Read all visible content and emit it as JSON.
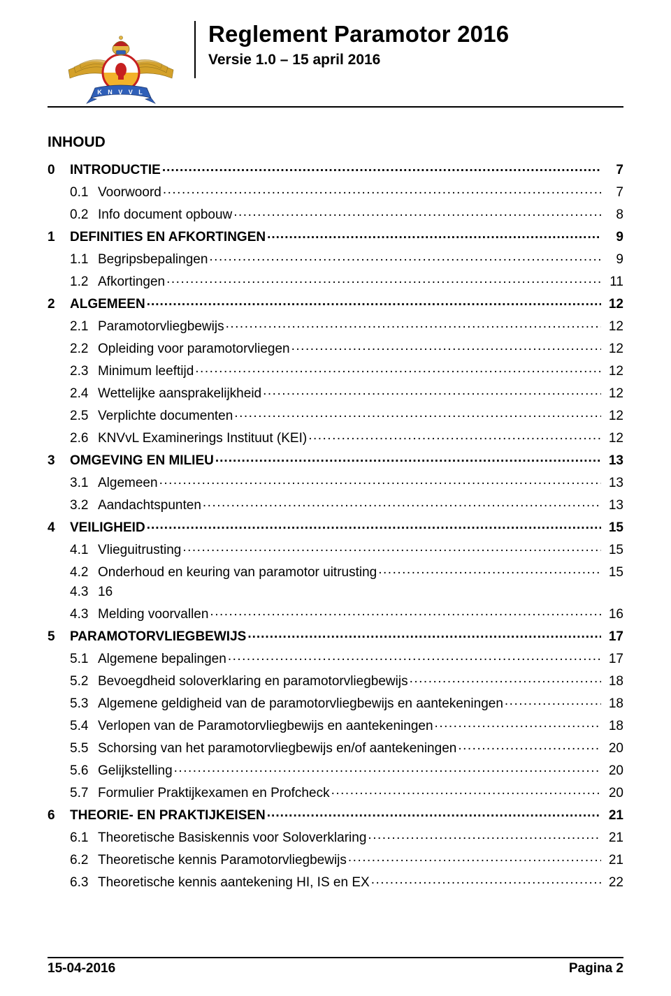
{
  "header": {
    "title": "Reglement Paramotor 2016",
    "subtitle": "Versie 1.0 – 15 april 2016"
  },
  "logo": {
    "ribbon_text": "K N V V L",
    "wing_color": "#d4a12a",
    "ribbon_color": "#2f5fb8",
    "body_top_color": "#ffffff",
    "body_bottom_color": "#f2b22a",
    "ring_color": "#c62020",
    "crest_gold": "#e5b742",
    "crown_red": "#b82020"
  },
  "toc_title": "INHOUD",
  "toc": [
    {
      "level": 0,
      "num": "0",
      "text": "INTRODUCTIE",
      "page": "7"
    },
    {
      "level": 1,
      "num": "0.1",
      "text": "Voorwoord",
      "page": "7"
    },
    {
      "level": 1,
      "num": "0.2",
      "text": "Info document opbouw",
      "page": "8"
    },
    {
      "level": 0,
      "num": "1",
      "text": "DEFINITIES EN AFKORTINGEN",
      "page": "9"
    },
    {
      "level": 1,
      "num": "1.1",
      "text": "Begripsbepalingen",
      "page": "9"
    },
    {
      "level": 1,
      "num": "1.2",
      "text": "Afkortingen",
      "page": "11"
    },
    {
      "level": 0,
      "num": "2",
      "text": "ALGEMEEN",
      "page": "12"
    },
    {
      "level": 1,
      "num": "2.1",
      "text": "Paramotorvliegbewijs",
      "page": "12"
    },
    {
      "level": 1,
      "num": "2.2",
      "text": "Opleiding voor paramotorvliegen",
      "page": "12"
    },
    {
      "level": 1,
      "num": "2.3",
      "text": "Minimum leeftijd",
      "page": "12"
    },
    {
      "level": 1,
      "num": "2.4",
      "text": "Wettelijke aansprakelijkheid",
      "page": "12"
    },
    {
      "level": 1,
      "num": "2.5",
      "text": "Verplichte documenten",
      "page": "12"
    },
    {
      "level": 1,
      "num": "2.6",
      "text": "KNVvL Examinerings Instituut (KEI)",
      "page": "12"
    },
    {
      "level": 0,
      "num": "3",
      "text": "OMGEVING EN MILIEU",
      "page": "13"
    },
    {
      "level": 1,
      "num": "3.1",
      "text": "Algemeen",
      "page": "13"
    },
    {
      "level": 1,
      "num": "3.2",
      "text": "Aandachtspunten",
      "page": "13"
    },
    {
      "level": 0,
      "num": "4",
      "text": "VEILIGHEID",
      "page": "15"
    },
    {
      "level": 1,
      "num": "4.1",
      "text": "Vlieguitrusting",
      "page": "15"
    },
    {
      "level": 1,
      "num": "4.2",
      "text": "Onderhoud en keuring van paramotor uitrusting",
      "page": "15"
    },
    {
      "level": 1,
      "num": "4.3",
      "text": "16",
      "page": "",
      "no_leader": true,
      "special": "sub43_main"
    },
    {
      "level": 1,
      "num": "4.3",
      "text": "Melding voorvallen",
      "page": "16"
    },
    {
      "level": 0,
      "num": "5",
      "text": "PARAMOTORVLIEGBEWIJS",
      "page": "17"
    },
    {
      "level": 1,
      "num": "5.1",
      "text": "Algemene bepalingen",
      "page": "17"
    },
    {
      "level": 1,
      "num": "5.2",
      "text": "Bevoegdheid soloverklaring en paramotorvliegbewijs",
      "page": "18"
    },
    {
      "level": 1,
      "num": "5.3",
      "text": "Algemene geldigheid van de paramotorvliegbewijs en aantekeningen",
      "page": "18"
    },
    {
      "level": 1,
      "num": "5.4",
      "text": "Verlopen van de Paramotorvliegbewijs en aantekeningen",
      "page": "18"
    },
    {
      "level": 1,
      "num": "5.5",
      "text": "Schorsing van het paramotorvliegbewijs en/of aantekeningen",
      "page": "20"
    },
    {
      "level": 1,
      "num": "5.6",
      "text": "Gelijkstelling",
      "page": "20"
    },
    {
      "level": 1,
      "num": "5.7",
      "text": "Formulier Praktijkexamen en Profcheck",
      "page": "20"
    },
    {
      "level": 0,
      "num": "6",
      "text": "THEORIE- EN PRAKTIJKEISEN",
      "page": "21"
    },
    {
      "level": 1,
      "num": "6.1",
      "text": "Theoretische Basiskennis voor Soloverklaring",
      "page": "21"
    },
    {
      "level": 1,
      "num": "6.2",
      "text": "Theoretische kennis Paramotorvliegbewijs",
      "page": "21"
    },
    {
      "level": 1,
      "num": "6.3",
      "text": "Theoretische kennis aantekening HI, IS en EX",
      "page": "22"
    }
  ],
  "footer": {
    "left": "15-04-2016",
    "right": "Pagina  2"
  }
}
